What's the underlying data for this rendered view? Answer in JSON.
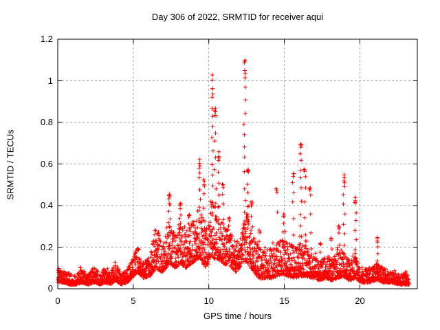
{
  "chart_data": {
    "type": "scatter",
    "title": "Day 306 of 2022, SRMTID for receiver aqui",
    "xlabel": "GPS time / hours",
    "ylabel": "SRMTID / TECUs",
    "xlim": [
      0,
      23.8
    ],
    "ylim": [
      0,
      1.2
    ],
    "xticks": [
      0,
      5,
      10,
      15,
      20
    ],
    "yticks": [
      0,
      0.2,
      0.4,
      0.6,
      0.8,
      1,
      1.2
    ],
    "xtick_labels": [
      "0",
      "5",
      "10",
      "15",
      "20"
    ],
    "ytick_labels": [
      "0",
      "0.2",
      "0.4",
      "0.6",
      "0.8",
      "1",
      "1.2"
    ],
    "grid": true,
    "legend": false,
    "marker": "+",
    "marker_color": "#ff0000",
    "grid_color": "#9e9e9e",
    "axis_color": "#000000",
    "background_color": "#ffffff",
    "series_name": "SRMTID",
    "sampling": {
      "start_hour": 0,
      "end_hour": 23.25,
      "points_per_hour": 120,
      "seed": 1234
    },
    "baseline_envelope": [
      [
        0.0,
        0.03,
        0.09
      ],
      [
        0.4,
        0.03,
        0.08
      ],
      [
        0.8,
        0.02,
        0.07
      ],
      [
        1.2,
        0.02,
        0.06
      ],
      [
        1.6,
        0.03,
        0.1
      ],
      [
        2.0,
        0.02,
        0.06
      ],
      [
        2.4,
        0.03,
        0.11
      ],
      [
        2.8,
        0.02,
        0.07
      ],
      [
        3.1,
        0.03,
        0.1
      ],
      [
        3.5,
        0.02,
        0.07
      ],
      [
        3.8,
        0.04,
        0.13
      ],
      [
        4.2,
        0.02,
        0.07
      ],
      [
        4.6,
        0.03,
        0.09
      ],
      [
        5.0,
        0.06,
        0.15
      ],
      [
        5.3,
        0.08,
        0.21
      ],
      [
        5.7,
        0.05,
        0.13
      ],
      [
        6.1,
        0.06,
        0.16
      ],
      [
        6.5,
        0.1,
        0.29
      ],
      [
        6.9,
        0.08,
        0.22
      ],
      [
        7.4,
        0.12,
        0.3
      ],
      [
        7.8,
        0.1,
        0.26
      ],
      [
        8.1,
        0.12,
        0.3
      ],
      [
        8.5,
        0.1,
        0.28
      ],
      [
        9.0,
        0.13,
        0.33
      ],
      [
        9.4,
        0.15,
        0.4
      ],
      [
        9.8,
        0.1,
        0.28
      ],
      [
        10.2,
        0.15,
        0.42
      ],
      [
        10.6,
        0.14,
        0.38
      ],
      [
        11.0,
        0.12,
        0.3
      ],
      [
        11.4,
        0.11,
        0.28
      ],
      [
        11.8,
        0.08,
        0.22
      ],
      [
        12.2,
        0.12,
        0.3
      ],
      [
        12.5,
        0.13,
        0.36
      ],
      [
        12.9,
        0.09,
        0.26
      ],
      [
        13.3,
        0.05,
        0.2
      ],
      [
        13.7,
        0.05,
        0.18
      ],
      [
        14.1,
        0.05,
        0.2
      ],
      [
        14.5,
        0.06,
        0.22
      ],
      [
        14.9,
        0.07,
        0.24
      ],
      [
        15.3,
        0.06,
        0.22
      ],
      [
        15.7,
        0.05,
        0.2
      ],
      [
        16.1,
        0.06,
        0.22
      ],
      [
        16.5,
        0.06,
        0.2
      ],
      [
        16.9,
        0.05,
        0.16
      ],
      [
        17.3,
        0.04,
        0.13
      ],
      [
        17.7,
        0.05,
        0.15
      ],
      [
        18.1,
        0.04,
        0.14
      ],
      [
        18.5,
        0.05,
        0.17
      ],
      [
        18.9,
        0.06,
        0.18
      ],
      [
        19.3,
        0.04,
        0.13
      ],
      [
        19.7,
        0.05,
        0.15
      ],
      [
        20.1,
        0.03,
        0.1
      ],
      [
        20.6,
        0.03,
        0.09
      ],
      [
        21.1,
        0.04,
        0.12
      ],
      [
        21.6,
        0.03,
        0.1
      ],
      [
        22.1,
        0.03,
        0.08
      ],
      [
        22.6,
        0.02,
        0.07
      ],
      [
        23.25,
        0.02,
        0.07
      ]
    ],
    "spikes": [
      {
        "x": 7.4,
        "top": 0.46,
        "n": 8
      },
      {
        "x": 8.1,
        "top": 0.41,
        "n": 6
      },
      {
        "x": 8.7,
        "top": 0.36,
        "n": 5
      },
      {
        "x": 9.4,
        "top": 0.61,
        "n": 8
      },
      {
        "x": 9.7,
        "top": 0.52,
        "n": 6
      },
      {
        "x": 10.23,
        "top": 1.0,
        "n": 14
      },
      {
        "x": 10.42,
        "top": 0.88,
        "n": 10
      },
      {
        "x": 10.65,
        "top": 0.64,
        "n": 7
      },
      {
        "x": 10.95,
        "top": 0.5,
        "n": 5
      },
      {
        "x": 11.35,
        "top": 0.34,
        "n": 4
      },
      {
        "x": 12.38,
        "top": 1.09,
        "n": 16
      },
      {
        "x": 12.6,
        "top": 0.58,
        "n": 7
      },
      {
        "x": 12.85,
        "top": 0.42,
        "n": 5
      },
      {
        "x": 13.35,
        "top": 0.28,
        "n": 3
      },
      {
        "x": 14.5,
        "top": 0.48,
        "n": 3
      },
      {
        "x": 14.95,
        "top": 0.36,
        "n": 4
      },
      {
        "x": 15.6,
        "top": 0.56,
        "n": 7
      },
      {
        "x": 16.1,
        "top": 0.7,
        "n": 12
      },
      {
        "x": 16.35,
        "top": 0.58,
        "n": 7
      },
      {
        "x": 16.7,
        "top": 0.49,
        "n": 5
      },
      {
        "x": 17.4,
        "top": 0.22,
        "n": 3
      },
      {
        "x": 18.1,
        "top": 0.24,
        "n": 3
      },
      {
        "x": 18.6,
        "top": 0.3,
        "n": 4
      },
      {
        "x": 18.95,
        "top": 0.54,
        "n": 10
      },
      {
        "x": 19.7,
        "top": 0.43,
        "n": 8
      },
      {
        "x": 21.15,
        "top": 0.24,
        "n": 6
      }
    ]
  }
}
